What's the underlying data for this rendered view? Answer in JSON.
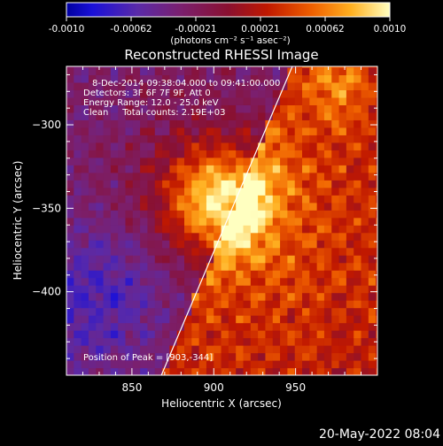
{
  "colorbar": {
    "ticks": [
      "-0.0010",
      "-0.00062",
      "-0.00021",
      "0.00021",
      "0.00062",
      "0.0010"
    ],
    "unit_label": "(photons cm⁻² s⁻¹ asec⁻²)",
    "range": [
      -0.001,
      0.001
    ]
  },
  "plot": {
    "title": "Reconstructed RHESSI Image",
    "info_lines": [
      "8-Dec-2014 09:38:04.000 to 09:41:00.000",
      "Detectors: 3F 6F 7F 9F, Att 0",
      "Energy Range: 12.0 - 25.0 keV",
      "Clean     Total counts: 2.19E+03"
    ],
    "peak_label": "Position of Peak = [903,-344]"
  },
  "footer": {
    "timestamp": "20-May-2022 08:04"
  },
  "colors": {
    "background": "#000000",
    "text": "#ffffff"
  },
  "chart_data": {
    "type": "heatmap",
    "title": "Reconstructed RHESSI Image",
    "xlabel": "Heliocentric X (arcsec)",
    "ylabel": "Heliocentric Y (arcsec)",
    "xlim": [
      810,
      1000
    ],
    "ylim": [
      -450,
      -265
    ],
    "x_ticks": [
      850,
      900,
      950
    ],
    "y_ticks": [
      -300,
      -350,
      -400
    ],
    "x_tick_labels": [
      "850",
      "900",
      "950"
    ],
    "y_tick_labels": [
      "−300",
      "−350",
      "−400"
    ],
    "peak": {
      "x": 903,
      "y": -344
    },
    "limb_line": [
      [
        868,
        -450
      ],
      [
        948,
        -265
      ]
    ],
    "colorbar_range": [
      -0.001,
      0.001
    ]
  }
}
